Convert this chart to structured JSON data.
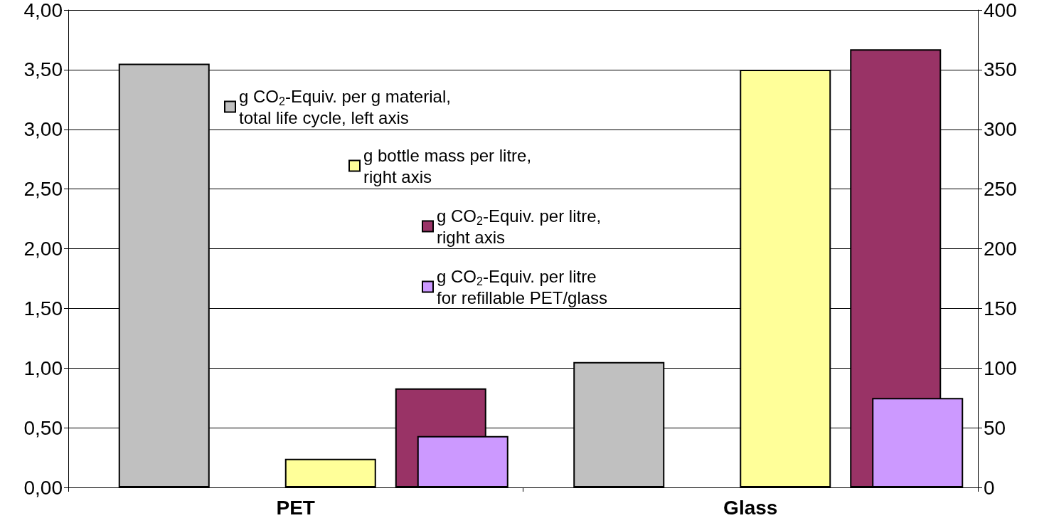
{
  "chart_data": {
    "type": "bar",
    "categories": [
      "PET",
      "Glass"
    ],
    "series": [
      {
        "name": "g CO$_{2}$-Equiv. per g material,\ntotal life cycle, left axis",
        "color": "#c0c0c0",
        "axis": "y",
        "values": [
          3.55,
          1.05
        ]
      },
      {
        "name": "g bottle mass per litre,\nright axis",
        "color": "#ffff99",
        "axis": "y2",
        "values": [
          24,
          350
        ]
      },
      {
        "name": "g CO$_{2}$-Equiv. per litre,\nright axis",
        "color": "#993366",
        "axis": "y2",
        "values": [
          83,
          367
        ]
      },
      {
        "name": "g CO$_{2}$-Equiv. per litre\nfor refillable PET/glass",
        "color": "#cc99ff",
        "axis": "y2",
        "values": [
          43,
          75
        ]
      }
    ],
    "ylim": [
      0,
      4
    ],
    "yticks": [
      {
        "value": 0,
        "label": "0,00"
      },
      {
        "value": 0.5,
        "label": "0,50"
      },
      {
        "value": 1,
        "label": "1,00"
      },
      {
        "value": 1.5,
        "label": "1,50"
      },
      {
        "value": 2,
        "label": "2,00"
      },
      {
        "value": 2.5,
        "label": "2,50"
      },
      {
        "value": 3,
        "label": "3,00"
      },
      {
        "value": 3.5,
        "label": "3,50"
      },
      {
        "value": 4,
        "label": "4,00"
      }
    ],
    "y2lim": [
      0,
      400
    ],
    "y2ticks": [
      0,
      50,
      100,
      150,
      200,
      250,
      300,
      350,
      400
    ],
    "grid": true,
    "legend": "top"
  }
}
